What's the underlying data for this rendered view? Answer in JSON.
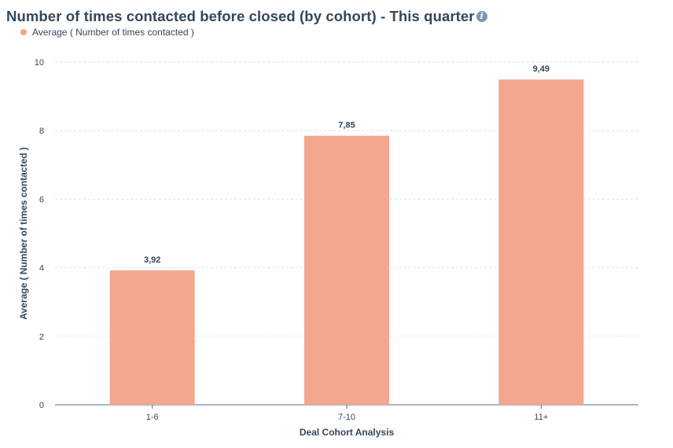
{
  "header": {
    "title": "Number of times contacted before closed (by cohort) - This quarter",
    "info_icon": "info-circle-icon"
  },
  "legend": {
    "items": [
      {
        "label": "Average ( Number of times contacted )",
        "color": "#f5a68f"
      }
    ],
    "placement": "top-left"
  },
  "chart_data": {
    "type": "bar",
    "title": "Number of times contacted before closed (by cohort) - This quarter",
    "xlabel": "Deal Cohort Analysis",
    "ylabel": "Average ( Number of times contacted )",
    "categories": [
      "1-6",
      "7-10",
      "11+"
    ],
    "series": [
      {
        "name": "Average ( Number of times contacted )",
        "values": [
          3.92,
          7.85,
          9.49
        ],
        "value_labels": [
          "3,92",
          "7,85",
          "9,49"
        ],
        "color": "#f5a68f"
      }
    ],
    "ylim": [
      0,
      10
    ],
    "yticks": [
      0,
      2,
      4,
      6,
      8,
      10
    ],
    "grid": true,
    "legend": "top-left"
  }
}
